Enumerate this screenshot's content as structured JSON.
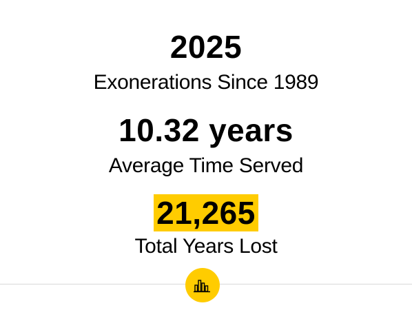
{
  "stats": [
    {
      "value": "2025",
      "label": "Exonerations Since 1989"
    },
    {
      "value": "10.32 years",
      "label": "Average Time Served"
    },
    {
      "value": "21,265",
      "label": "Total Years Lost"
    }
  ],
  "colors": {
    "highlight": "#ffcc00",
    "text": "#000000",
    "divider": "#d8d8d8",
    "button": "#ffcc00"
  },
  "chart_button": {
    "icon": "bar-chart-icon"
  }
}
